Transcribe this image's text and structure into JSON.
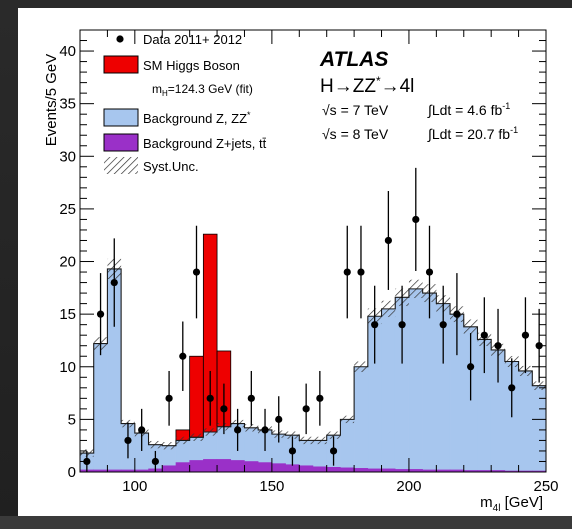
{
  "chart_data": {
    "type": "histogram",
    "xlabel": "m",
    "xlabel_sub": "4l",
    "xlabel_unit": " [GeV]",
    "ylabel": "Events/5 GeV",
    "xlim": [
      80,
      250
    ],
    "ylim": [
      0,
      42
    ],
    "bin_width": 5,
    "x_ticks": [
      100,
      150,
      200,
      250
    ],
    "y_ticks": [
      0,
      5,
      10,
      15,
      20,
      25,
      30,
      35,
      40
    ],
    "grid": false,
    "legend_placement": "top-left",
    "annotations": {
      "experiment": "ATLAS",
      "process_main": "H→ZZ",
      "process_star": "*",
      "process_tail": "→4l",
      "lumi_2011": {
        "sqrt": "√s = 7 TeV",
        "ldt": "∫Ldt = 4.6 fb",
        "exp": "-1"
      },
      "lumi_2012": {
        "sqrt": "√s = 8 TeV",
        "ldt": "∫Ldt = 20.7 fb",
        "exp": "-1"
      }
    },
    "legend": {
      "data": "Data 2011+ 2012",
      "higgs": "SM Higgs Boson",
      "higgs_sub_pre": "m",
      "higgs_sub_H": "H",
      "higgs_sub_post": "=124.3 GeV (fit)",
      "zz": "Background Z, ZZ",
      "zz_star": "*",
      "zjets": "Background Z+jets, tt̄",
      "syst": "Syst.Unc."
    },
    "colors": {
      "higgs": "#ee0000",
      "zz": "#a7c6ee",
      "zjets": "#9a30c8",
      "data": "#000000"
    },
    "series": [
      {
        "name": "Background Z+jets, tt̄",
        "bin_low_edges": [
          80,
          85,
          90,
          95,
          100,
          105,
          110,
          115,
          120,
          125,
          130,
          135,
          140,
          145,
          150,
          155,
          160,
          165,
          170,
          175,
          180,
          185,
          190,
          195,
          200,
          205,
          210,
          215,
          220,
          225,
          230,
          235,
          240,
          245
        ],
        "values": [
          0.2,
          0.2,
          0.2,
          0.2,
          0.2,
          0.3,
          0.6,
          0.9,
          1.1,
          1.2,
          1.2,
          1.1,
          1.0,
          0.9,
          0.8,
          0.7,
          0.6,
          0.5,
          0.45,
          0.4,
          0.35,
          0.3,
          0.3,
          0.25,
          0.25,
          0.2,
          0.2,
          0.2,
          0.15,
          0.15,
          0.15,
          0.1,
          0.1,
          0.1
        ]
      },
      {
        "name": "Background Z, ZZ*",
        "bin_low_edges": [
          80,
          85,
          90,
          95,
          100,
          105,
          110,
          115,
          120,
          125,
          130,
          135,
          140,
          145,
          150,
          155,
          160,
          165,
          170,
          175,
          180,
          185,
          190,
          195,
          200,
          205,
          210,
          215,
          220,
          225,
          230,
          235,
          240,
          245
        ],
        "stack_top": [
          1.8,
          12.2,
          19.3,
          4.6,
          3.7,
          2.6,
          2.5,
          3.0,
          3.3,
          3.8,
          4.3,
          4.6,
          4.2,
          4.0,
          3.6,
          3.5,
          3.0,
          3.0,
          3.5,
          5.0,
          10.0,
          14.8,
          15.5,
          16.6,
          17.4,
          17.0,
          16.0,
          15.0,
          13.8,
          12.6,
          11.6,
          10.5,
          9.6,
          8.2
        ]
      },
      {
        "name": "SM Higgs Boson",
        "bin_low_edges": [
          115,
          120,
          125,
          130
        ],
        "stack_top": [
          4.0,
          11.0,
          22.6,
          11.5
        ]
      },
      {
        "name": "Data 2011+ 2012",
        "x": [
          82.5,
          87.5,
          92.5,
          97.5,
          102.5,
          107.5,
          112.5,
          117.5,
          122.5,
          127.5,
          132.5,
          137.5,
          142.5,
          147.5,
          152.5,
          157.5,
          162.5,
          167.5,
          172.5,
          177.5,
          182.5,
          187.5,
          192.5,
          197.5,
          202.5,
          207.5,
          212.5,
          217.5,
          222.5,
          227.5,
          232.5,
          237.5,
          242.5,
          247.5
        ],
        "y": [
          1,
          15,
          18,
          3,
          4,
          1,
          7,
          11,
          19,
          7,
          6,
          4,
          7,
          4,
          5,
          2,
          6,
          7,
          2,
          19,
          19,
          14,
          22,
          14,
          24,
          19,
          14,
          15,
          10,
          13,
          12,
          8,
          13,
          12
        ],
        "err": [
          1,
          3.9,
          4.2,
          1.7,
          2.0,
          1,
          2.6,
          3.3,
          4.4,
          2.6,
          2.4,
          2.0,
          2.6,
          2.0,
          2.2,
          1.4,
          2.4,
          2.6,
          1.4,
          4.4,
          4.4,
          3.7,
          4.7,
          3.7,
          4.9,
          4.4,
          3.7,
          3.9,
          3.2,
          3.6,
          3.5,
          2.8,
          3.6,
          3.5
        ]
      }
    ]
  }
}
